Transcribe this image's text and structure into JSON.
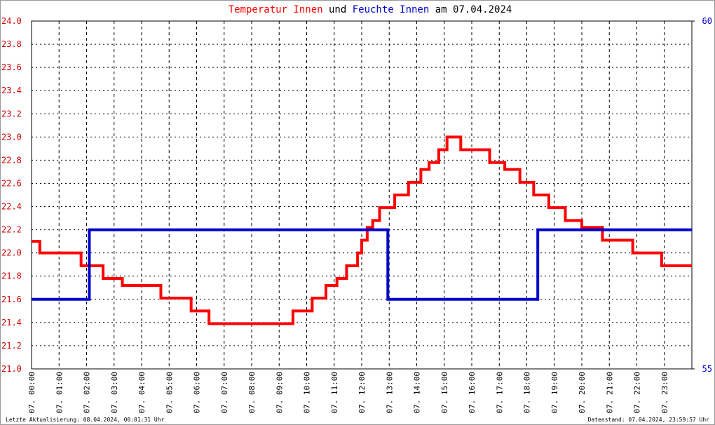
{
  "chart_data": {
    "type": "line",
    "title_parts": [
      {
        "text": "Temperatur Innen",
        "color": "#ff0000"
      },
      {
        "text": "und",
        "color": "#000000"
      },
      {
        "text": "Feuchte Innen",
        "color": "#0000cc"
      },
      {
        "text": "am 07.04.2024",
        "color": "#000000"
      }
    ],
    "xlim": [
      0,
      24
    ],
    "xticks": [
      {
        "value": 0,
        "label": "07. 00:00"
      },
      {
        "value": 1,
        "label": "07. 01:00"
      },
      {
        "value": 2,
        "label": "07. 02:00"
      },
      {
        "value": 3,
        "label": "07. 03:00"
      },
      {
        "value": 4,
        "label": "07. 04:00"
      },
      {
        "value": 5,
        "label": "07. 05:00"
      },
      {
        "value": 6,
        "label": "07. 06:00"
      },
      {
        "value": 7,
        "label": "07. 07:00"
      },
      {
        "value": 8,
        "label": "07. 08:00"
      },
      {
        "value": 9,
        "label": "07. 09:00"
      },
      {
        "value": 10,
        "label": "07. 10:00"
      },
      {
        "value": 11,
        "label": "07. 11:00"
      },
      {
        "value": 12,
        "label": "07. 12:00"
      },
      {
        "value": 13,
        "label": "07. 13:00"
      },
      {
        "value": 14,
        "label": "07. 14:00"
      },
      {
        "value": 15,
        "label": "07. 15:00"
      },
      {
        "value": 16,
        "label": "07. 16:00"
      },
      {
        "value": 17,
        "label": "07. 17:00"
      },
      {
        "value": 18,
        "label": "07. 18:00"
      },
      {
        "value": 19,
        "label": "07. 19:00"
      },
      {
        "value": 20,
        "label": "07. 20:00"
      },
      {
        "value": 21,
        "label": "07. 21:00"
      },
      {
        "value": 22,
        "label": "07. 22:00"
      },
      {
        "value": 23,
        "label": "07. 23:00"
      }
    ],
    "ylim": [
      21,
      24
    ],
    "yticks": [
      {
        "value": 21,
        "label": "21.0"
      },
      21.2,
      21.4,
      21.6,
      21.8,
      {
        "value": 22,
        "label": "22.0"
      },
      22.2,
      22.4,
      22.6,
      22.8,
      {
        "value": 23,
        "label": "23.0"
      },
      23.2,
      23.4,
      23.6,
      23.8,
      {
        "value": 24,
        "label": "24.0"
      }
    ],
    "y2lim": [
      55,
      60
    ],
    "y2ticks": [
      55,
      60
    ],
    "grid": true,
    "series": [
      {
        "name": "Temperatur Innen",
        "color": "#ff0000",
        "x": [
          0,
          0.3,
          0.3,
          1.8,
          1.8,
          2.6,
          2.6,
          3.3,
          3.3,
          4.7,
          4.7,
          5.8,
          5.8,
          6.45,
          6.45,
          9.5,
          9.5,
          10.2,
          10.2,
          10.7,
          10.7,
          11.1,
          11.1,
          11.45,
          11.45,
          11.85,
          11.85,
          12.0,
          12.0,
          12.2,
          12.2,
          12.4,
          12.4,
          12.65,
          12.65,
          13.2,
          13.2,
          13.7,
          13.7,
          14.15,
          14.15,
          14.45,
          14.45,
          14.8,
          14.8,
          15.1,
          15.1,
          15.6,
          15.6,
          16.65,
          16.65,
          17.2,
          17.2,
          17.75,
          17.75,
          18.25,
          18.25,
          18.8,
          18.8,
          19.4,
          19.4,
          20.0,
          20.0,
          20.75,
          20.75,
          21.85,
          21.85,
          22.9,
          22.9,
          24
        ],
        "values": [
          22.1,
          22.1,
          22.0,
          22.0,
          21.89,
          21.89,
          21.78,
          21.78,
          21.72,
          21.72,
          21.61,
          21.61,
          21.5,
          21.5,
          21.39,
          21.39,
          21.5,
          21.5,
          21.61,
          21.61,
          21.72,
          21.72,
          21.78,
          21.78,
          21.89,
          21.89,
          22.0,
          22.0,
          22.11,
          22.11,
          22.22,
          22.22,
          22.28,
          22.28,
          22.39,
          22.39,
          22.5,
          22.5,
          22.61,
          22.61,
          22.72,
          22.72,
          22.78,
          22.78,
          22.89,
          22.89,
          23.0,
          23.0,
          22.89,
          22.89,
          22.78,
          22.78,
          22.72,
          22.72,
          22.61,
          22.61,
          22.5,
          22.5,
          22.39,
          22.39,
          22.28,
          22.28,
          22.22,
          22.22,
          22.11,
          22.11,
          22.0,
          22.0,
          21.89,
          21.89
        ]
      },
      {
        "name": "Feuchte Innen",
        "color": "#0000cc",
        "axis": "y2",
        "x": [
          0,
          2.1,
          2.1,
          12.95,
          12.95,
          18.4,
          18.4,
          24
        ],
        "values": [
          56,
          56,
          57,
          57,
          56,
          56,
          57,
          57
        ]
      }
    ],
    "footer_left": "Letzte Aktualisierung: 08.04.2024, 00:01:31 Uhr",
    "footer_right": "Datenstand: 07.04.2024, 23:59:57 Uhr"
  }
}
